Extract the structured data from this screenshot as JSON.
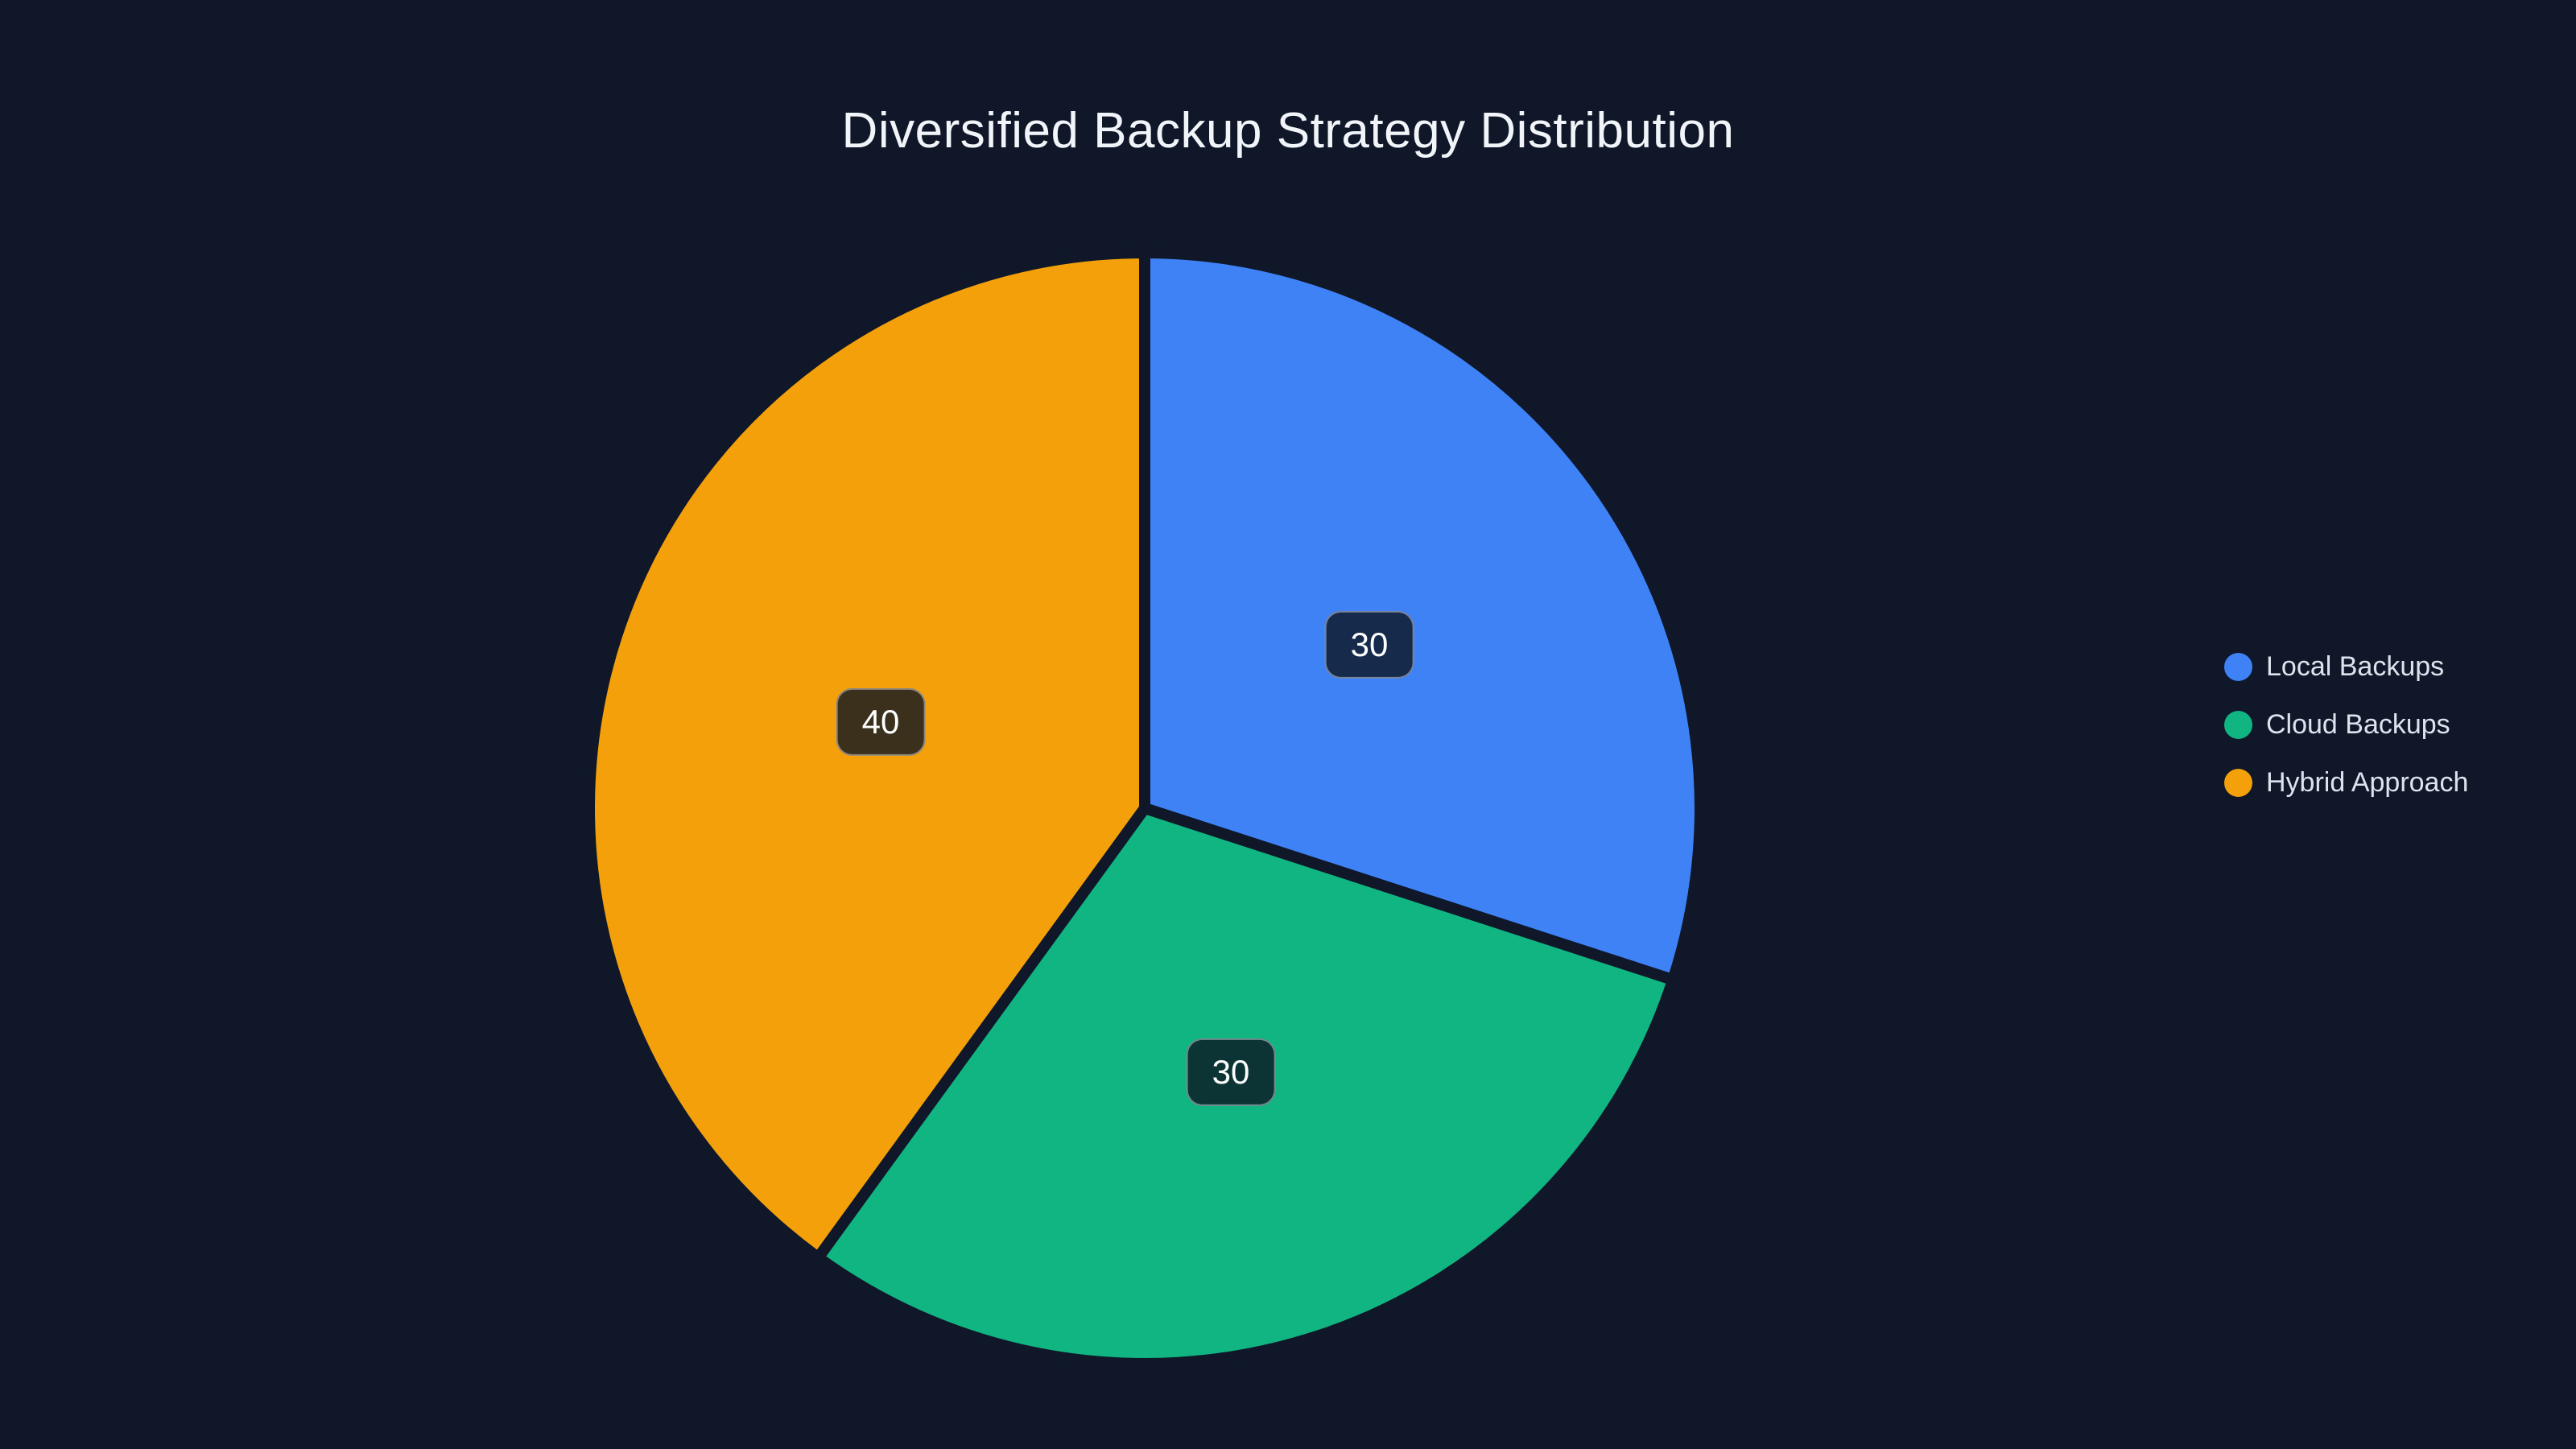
{
  "title": "Diversified Backup Strategy Distribution",
  "chart_data": {
    "type": "pie",
    "title": "Diversified Backup Strategy Distribution",
    "categories": [
      "Local Backups",
      "Cloud Backups",
      "Hybrid Approach"
    ],
    "values": [
      30,
      30,
      40
    ],
    "data_labels": [
      "30",
      "30",
      "40"
    ],
    "colors": [
      "#3e82f6",
      "#11b581",
      "#f3a00b"
    ],
    "start_angle": "12-oclock",
    "direction": "clockwise",
    "label_radius_ratio": 0.5,
    "slice_gap_color": "#0f1729",
    "legend_position": "right",
    "legend_items": [
      {
        "label": "Local Backups",
        "color": "#3e82f6"
      },
      {
        "label": "Cloud Backups",
        "color": "#11b581"
      },
      {
        "label": "Hybrid Approach",
        "color": "#f3a00b"
      }
    ]
  },
  "colors": {
    "background": "#0f1729",
    "title_text": "#f1f5f9",
    "legend_text": "#dce3ed",
    "badge_background": "rgba(13,20,33,0.8)",
    "badge_border": "rgba(235,240,248,0.45)",
    "badge_text": "#ffffff"
  }
}
